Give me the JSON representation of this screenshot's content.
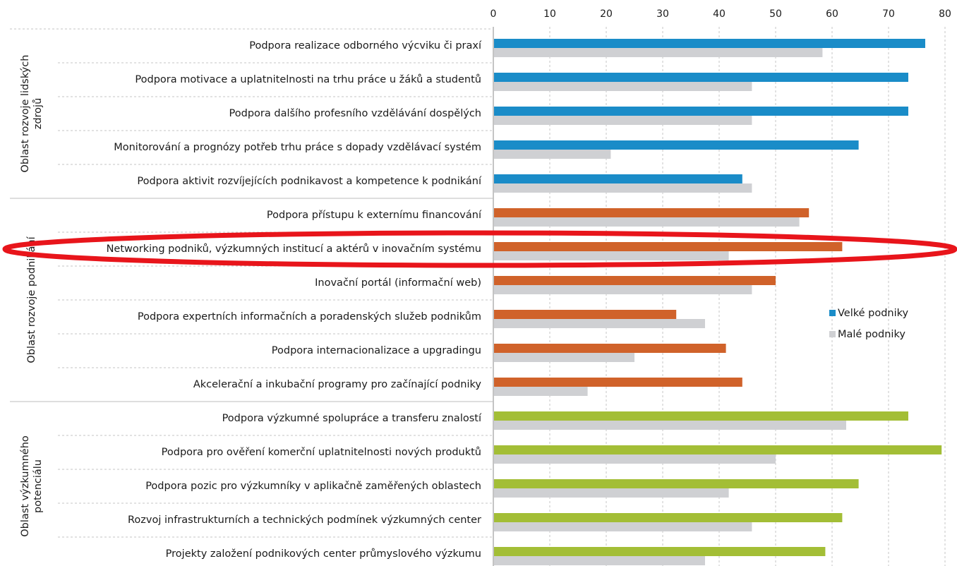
{
  "chart_data": {
    "type": "bar",
    "orientation": "horizontal",
    "xlim": [
      0,
      80
    ],
    "xticks": [
      0,
      10,
      20,
      30,
      40,
      50,
      60,
      70,
      80
    ],
    "xaxis_position": "top",
    "grid": true,
    "legend_position": "right",
    "groups": [
      {
        "label": "Oblast rozvoje lidských zdrojů",
        "first": 0,
        "last": 4,
        "color": "#1a8cc8"
      },
      {
        "label": "Oblast rozvoje podnikání",
        "first": 5,
        "last": 10,
        "color": "#d0622a"
      },
      {
        "label": "Oblast výzkumného potenciálu",
        "first": 11,
        "last": 15,
        "color": "#a3be36"
      }
    ],
    "categories": [
      "Podpora realizace odborného výcviku či praxí",
      "Podpora motivace a uplatnitelnosti na trhu práce u žáků a studentů",
      "Podpora dalšího profesního vzdělávání dospělých",
      "Monitorování a prognózy potřeb trhu práce s dopady vzdělávací systém",
      "Podpora aktivit rozvíjejících podnikavost a kompetence k podnikání",
      "Podpora přístupu k externímu financování",
      "Networking podniků, výzkumných institucí a aktérů v inovačním systému",
      "Inovační portál (informační web)",
      "Podpora expertních informačních a poradenských služeb podnikům",
      "Podpora internacionalizace a upgradingu",
      "Akcelerační a inkubační programy pro začínající podniky",
      "Podpora výzkumné spolupráce a transferu znalostí",
      "Podpora pro ověření komerční uplatnitelnosti nových produktů",
      "Podpora pozic pro výzkumníky v aplikačně zaměřených oblastech",
      "Rozvoj infrastrukturních a technických podmínek výzkumných center",
      "Projekty založení podnikových center průmyslového výzkumu"
    ],
    "series": [
      {
        "name": "Velké podniky",
        "legend_color": "#1a8cc8",
        "values": [
          76.5,
          73.5,
          73.5,
          64.7,
          44.1,
          55.9,
          61.8,
          50.0,
          32.4,
          41.2,
          44.1,
          73.5,
          79.4,
          64.7,
          61.8,
          58.8
        ]
      },
      {
        "name": "Malé podniky",
        "legend_color": "#cfd0d3",
        "values": [
          58.3,
          45.8,
          45.8,
          20.8,
          45.8,
          54.2,
          41.7,
          45.8,
          37.5,
          25.0,
          16.7,
          62.5,
          50.0,
          41.7,
          45.8,
          37.5
        ]
      }
    ],
    "highlight": {
      "category_index": 6,
      "shape": "ellipse",
      "color": "#e8151b"
    }
  }
}
